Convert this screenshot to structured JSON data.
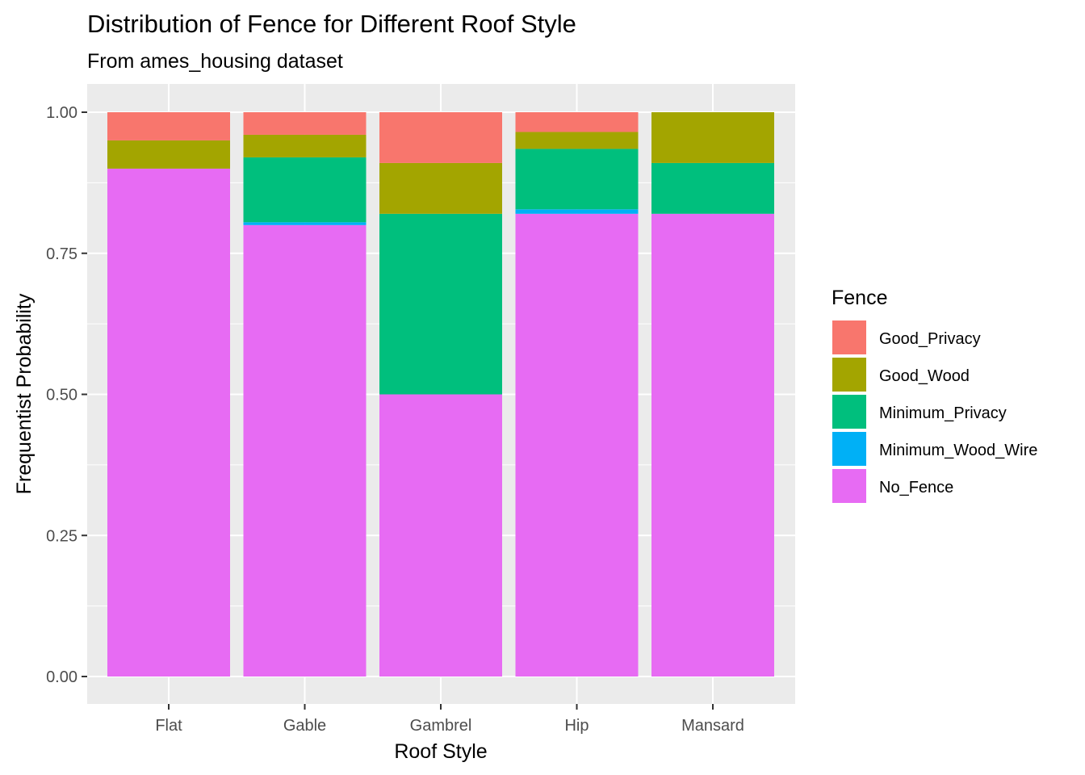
{
  "chart_data": {
    "type": "bar",
    "stacked": true,
    "title": "Distribution of Fence for Different Roof Style",
    "subtitle": "From ames_housing dataset",
    "xlabel": "Roof Style",
    "ylabel": "Frequentist Probability",
    "categories": [
      "Flat",
      "Gable",
      "Gambrel",
      "Hip",
      "Mansard"
    ],
    "ylim": [
      0,
      1
    ],
    "yticks": [
      "0.00",
      "0.25",
      "0.50",
      "0.75",
      "1.00"
    ],
    "ytick_values": [
      0,
      0.25,
      0.5,
      0.75,
      1.0
    ],
    "grid": true,
    "legend_title": "Fence",
    "legend_position": "right",
    "series": [
      {
        "name": "No_Fence",
        "color": "#E76BF3",
        "values": [
          0.9,
          0.8,
          0.5,
          0.82,
          0.82
        ]
      },
      {
        "name": "Minimum_Wood_Wire",
        "color": "#00B0F6",
        "values": [
          0.0,
          0.005,
          0.0,
          0.008,
          0.0
        ]
      },
      {
        "name": "Minimum_Privacy",
        "color": "#00BF7D",
        "values": [
          0.0,
          0.115,
          0.32,
          0.107,
          0.09
        ]
      },
      {
        "name": "Good_Wood",
        "color": "#A3A500",
        "values": [
          0.05,
          0.04,
          0.09,
          0.03,
          0.09
        ]
      },
      {
        "name": "Good_Privacy",
        "color": "#F8766D",
        "values": [
          0.05,
          0.04,
          0.09,
          0.035,
          0.0
        ]
      }
    ],
    "legend_order": [
      "Good_Privacy",
      "Good_Wood",
      "Minimum_Privacy",
      "Minimum_Wood_Wire",
      "No_Fence"
    ]
  }
}
